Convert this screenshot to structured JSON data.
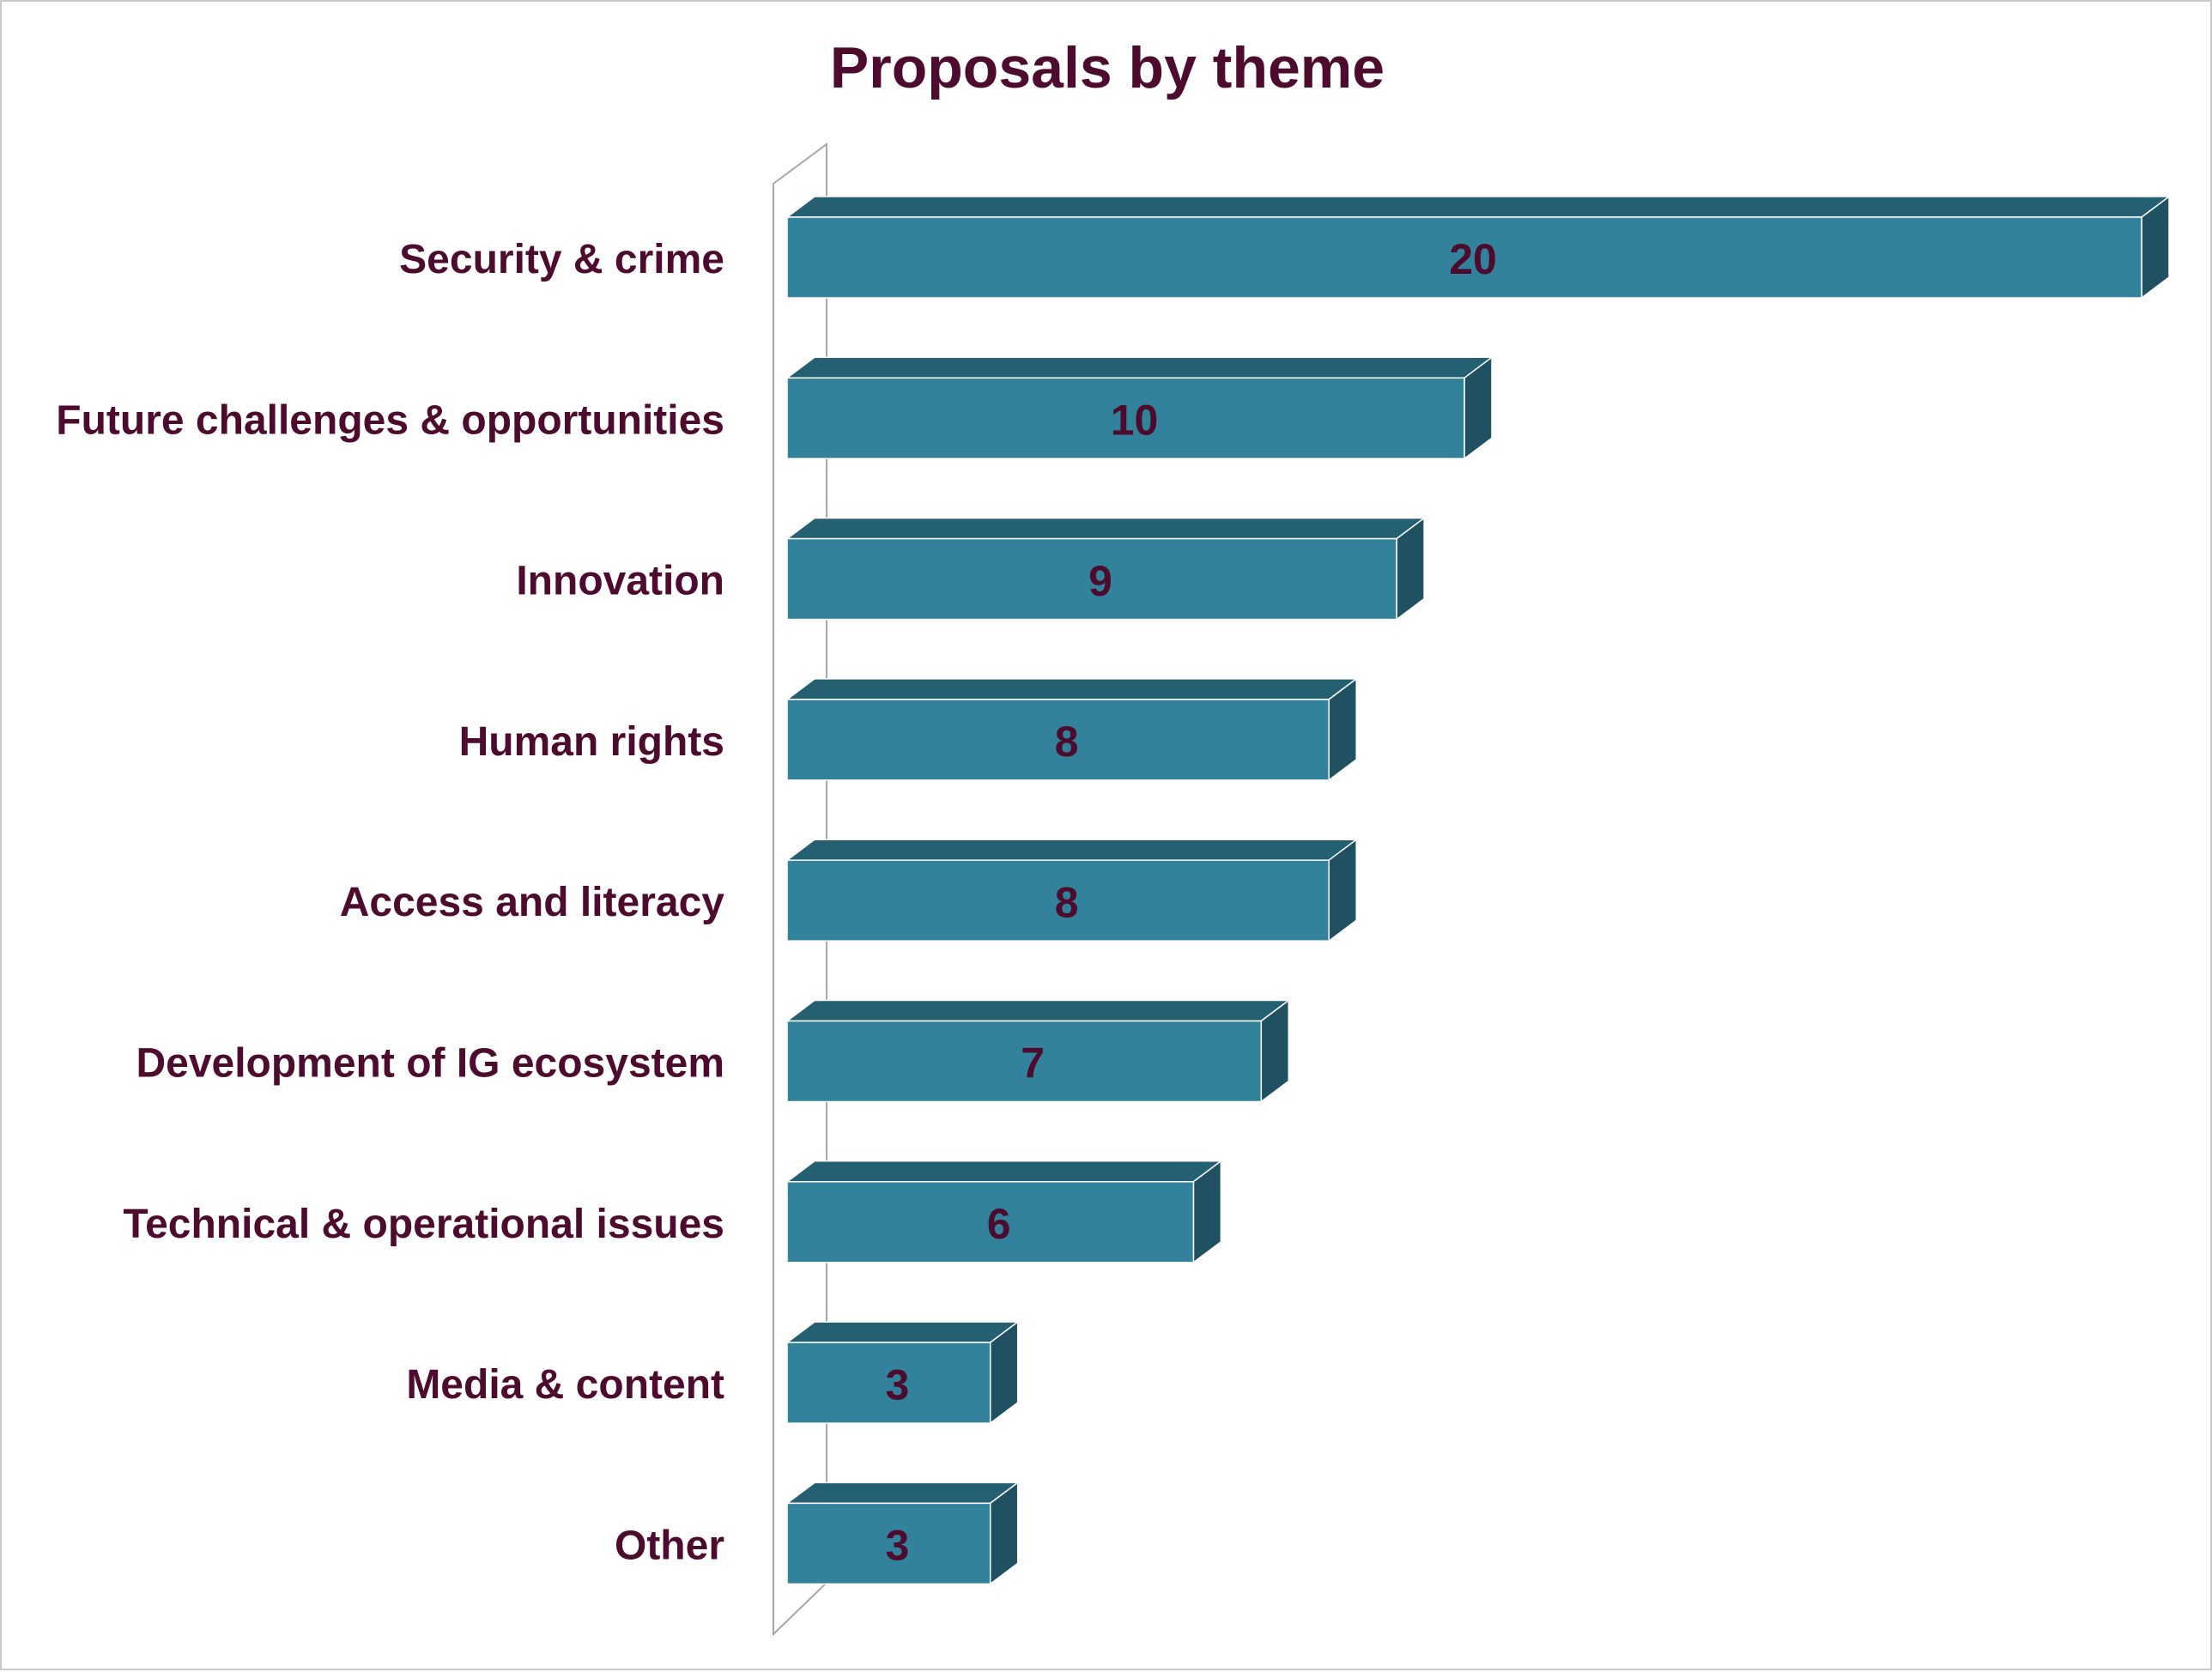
{
  "chart_data": {
    "type": "bar",
    "orientation": "horizontal",
    "three_d": true,
    "title": "Proposals by theme",
    "xlabel": "",
    "ylabel": "",
    "categories": [
      "Security & crime",
      "Future challenges & opportunities",
      "Innovation",
      "Human rights",
      "Access and literacy",
      "Development of IG ecosystem",
      "Technical & operational issues",
      "Media & content",
      "Other"
    ],
    "values": [
      20,
      10,
      9,
      8,
      8,
      7,
      6,
      3,
      3
    ],
    "value_labels": [
      "20",
      "10",
      "9",
      "8",
      "8",
      "7",
      "6",
      "3",
      "3"
    ],
    "xlim": [
      0,
      20
    ],
    "grid": false,
    "legend": "none",
    "colors": {
      "bar_front": "#32829b",
      "bar_top": "#255f72",
      "bar_side": "#1f5163",
      "text": "#4d0b2e",
      "axis_wall": "#a6a6a6"
    }
  }
}
